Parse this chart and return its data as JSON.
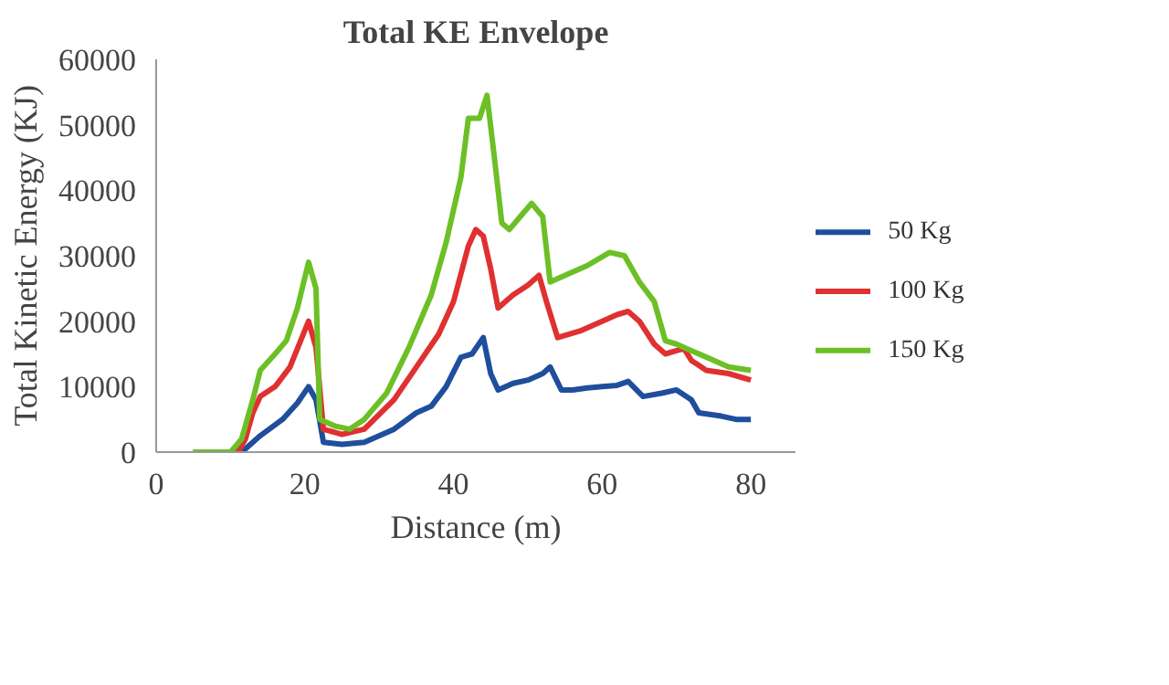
{
  "chart_data": {
    "type": "line",
    "title": "Total KE Envelope",
    "xlabel": "Distance (m)",
    "ylabel": "Total Kinetic Energy (KJ)",
    "xlim": [
      0,
      86
    ],
    "xticks": [
      0,
      20,
      40,
      60,
      80
    ],
    "ylim": [
      0,
      60000
    ],
    "yticks": [
      0,
      10000,
      20000,
      30000,
      40000,
      50000,
      60000
    ],
    "grid": false,
    "legend": "right",
    "line_style": "solid",
    "marker": "none",
    "series": [
      {
        "name": "50 Kg",
        "color": "#1f4e9c",
        "x": [
          5,
          11,
          12,
          14,
          17,
          19,
          20.5,
          21.5,
          22.5,
          25,
          28,
          32,
          35,
          37,
          39,
          41,
          42.5,
          44,
          45,
          46,
          48,
          50,
          52,
          53,
          54.5,
          56,
          58,
          60,
          62,
          63.5,
          65.5,
          68,
          70,
          72,
          73,
          76,
          78,
          80
        ],
        "values": [
          0,
          0,
          500,
          2500,
          5000,
          7500,
          10000,
          8000,
          1500,
          1200,
          1500,
          3500,
          6000,
          7000,
          10000,
          14500,
          15000,
          17500,
          12000,
          9500,
          10500,
          11000,
          12000,
          13000,
          9500,
          9500,
          9800,
          10000,
          10200,
          10800,
          8500,
          9000,
          9500,
          8000,
          6000,
          5500,
          5000,
          5000
        ]
      },
      {
        "name": "100 Kg",
        "color": "#e03030",
        "x": [
          5,
          11,
          12,
          13,
          14,
          16,
          18,
          20.5,
          21.5,
          22.5,
          25,
          28,
          32,
          35,
          38,
          40,
          42,
          43,
          44,
          45,
          46,
          48,
          50,
          51.5,
          52.5,
          54,
          57,
          60,
          62,
          63.5,
          65,
          67,
          68.5,
          70,
          71,
          72,
          74,
          77,
          80
        ],
        "values": [
          0,
          0,
          2000,
          6000,
          8500,
          10000,
          13000,
          20000,
          16000,
          3500,
          2700,
          3500,
          8000,
          13000,
          18000,
          23000,
          31500,
          34000,
          33000,
          28000,
          22000,
          24000,
          25500,
          27000,
          23000,
          17500,
          18500,
          20000,
          21000,
          21500,
          20000,
          16500,
          15000,
          15500,
          15800,
          14000,
          12500,
          12000,
          11000
        ]
      },
      {
        "name": "150 Kg",
        "color": "#6cc026",
        "x": [
          5,
          10,
          11.5,
          13,
          14,
          16,
          17.5,
          19,
          20.5,
          21.5,
          22,
          24,
          26,
          28,
          31,
          34,
          37,
          39,
          41,
          42,
          43.5,
          44.5,
          45.5,
          46.5,
          47.5,
          49,
          50.5,
          52,
          53,
          55,
          58,
          61,
          63,
          65,
          67,
          68.5,
          70,
          72,
          74,
          77,
          80
        ],
        "values": [
          0,
          0,
          2000,
          8000,
          12500,
          15000,
          17000,
          22000,
          29000,
          25000,
          5000,
          4000,
          3500,
          5000,
          9000,
          16000,
          24000,
          32000,
          42000,
          51000,
          51000,
          54500,
          45000,
          35000,
          34000,
          36000,
          38000,
          36000,
          26000,
          27000,
          28500,
          30500,
          30000,
          26000,
          23000,
          17000,
          16500,
          15500,
          14500,
          13000,
          12500
        ]
      }
    ]
  }
}
